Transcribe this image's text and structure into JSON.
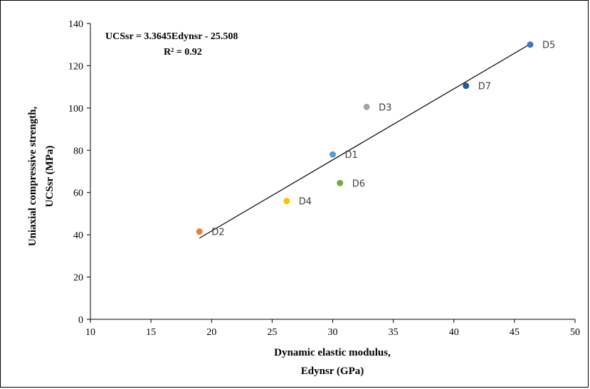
{
  "chart_data": {
    "type": "scatter",
    "xlabel_line1": "Dynamic  elastic modulus,",
    "xlabel_line2": "Edynsr  (GPa)",
    "ylabel_line1": "Uniaxial  compressive  strength,",
    "ylabel_line2": "UCSsr  (MPa)",
    "xlim": [
      10,
      50
    ],
    "ylim": [
      0,
      140
    ],
    "xticks": [
      10,
      15,
      20,
      25,
      30,
      35,
      40,
      45,
      50
    ],
    "yticks": [
      0,
      20,
      40,
      60,
      80,
      100,
      120,
      140
    ],
    "grid": false,
    "points": [
      {
        "label": "D1",
        "x": 30.0,
        "y": 78,
        "color": "#5b9bd5"
      },
      {
        "label": "D2",
        "x": 19.0,
        "y": 41.5,
        "color": "#ed7d31"
      },
      {
        "label": "D3",
        "x": 32.8,
        "y": 100.5,
        "color": "#a5a5a5"
      },
      {
        "label": "D4",
        "x": 26.2,
        "y": 56,
        "color": "#ffc000"
      },
      {
        "label": "D5",
        "x": 46.3,
        "y": 130,
        "color": "#4472c4"
      },
      {
        "label": "D6",
        "x": 30.6,
        "y": 64.5,
        "color": "#70ad47"
      },
      {
        "label": "D7",
        "x": 41.0,
        "y": 110.5,
        "color": "#255e91"
      }
    ],
    "trendline": {
      "slope": 3.3645,
      "intercept": -25.508,
      "x_range": [
        19.0,
        46.3
      ],
      "color": "#000000"
    },
    "equation_line1": "UCSsr = 3.3645Edynsr - 25.508",
    "equation_line2": "R² = 0.92"
  }
}
